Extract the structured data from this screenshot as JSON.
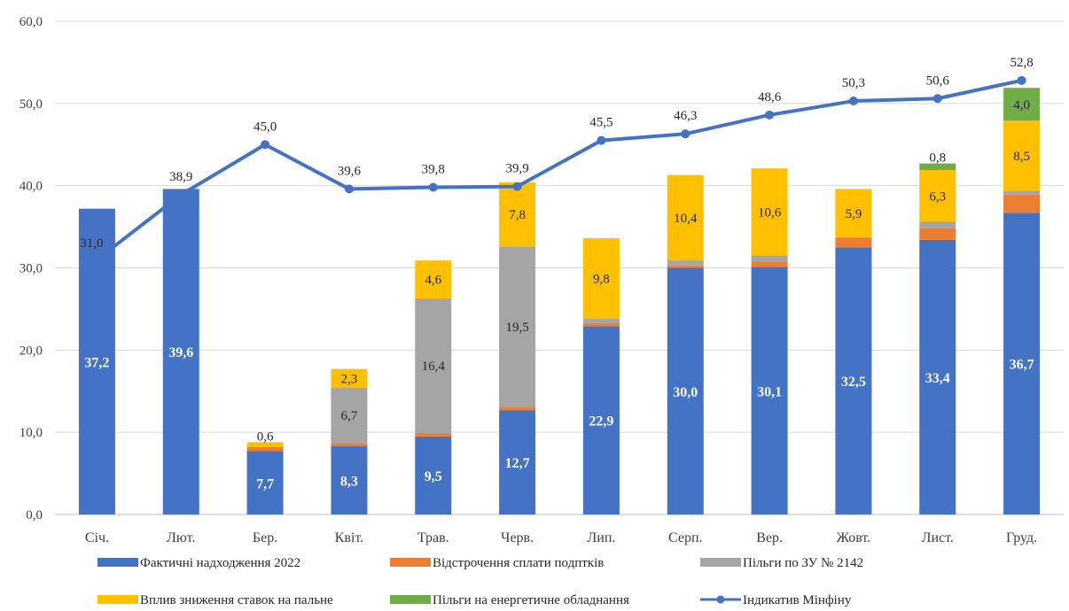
{
  "chart_data": {
    "type": "bar",
    "categories": [
      "Січ.",
      "Лют.",
      "Бер.",
      "Квіт.",
      "Трав.",
      "Черв.",
      "Лип.",
      "Серп.",
      "Вер.",
      "Жовт.",
      "Лист.",
      "Груд."
    ],
    "series": [
      {
        "name": "Фактичні надходження  2022",
        "kind": "stacked-bar",
        "color": "#4472C4",
        "values": [
          37.2,
          39.6,
          7.7,
          8.3,
          9.5,
          12.7,
          22.9,
          30.0,
          30.1,
          32.5,
          33.4,
          36.7
        ],
        "labels": [
          "37,2",
          "39,6",
          "7,7",
          "8,3",
          "9,5",
          "12,7",
          "22,9",
          "30,0",
          "30,1",
          "32,5",
          "33,4",
          "36,7"
        ]
      },
      {
        "name": "Відстрочення сплати подптків",
        "kind": "stacked-bar",
        "color": "#ED7D31",
        "values": [
          0,
          0,
          0.5,
          0.4,
          0.4,
          0.4,
          0.4,
          0.3,
          0.6,
          1.2,
          1.4,
          2.2
        ],
        "labels": [
          "",
          "",
          "",
          "",
          "",
          "",
          "",
          "",
          "",
          "",
          "",
          ""
        ]
      },
      {
        "name": "Пільги по ЗУ № 2142",
        "kind": "stacked-bar",
        "color": "#A5A5A5",
        "values": [
          0,
          0,
          0,
          6.7,
          16.4,
          19.5,
          0.5,
          0.6,
          0.8,
          0,
          0.8,
          0.5
        ],
        "labels": [
          "",
          "",
          "",
          "6,7",
          "16,4",
          "19,5",
          "",
          "",
          "",
          "",
          "",
          ""
        ]
      },
      {
        "name": "Вплив зниження ставок на пальне",
        "kind": "stacked-bar",
        "color": "#FFC000",
        "values": [
          0,
          0,
          0.6,
          2.3,
          4.6,
          7.8,
          9.8,
          10.4,
          10.6,
          5.9,
          6.3,
          8.5
        ],
        "labels": [
          "",
          "",
          "0,6",
          "2,3",
          "4,6",
          "7,8",
          "9,8",
          "10,4",
          "10,6",
          "5,9",
          "6,3",
          "8,5"
        ]
      },
      {
        "name": "Пільги на енергетичне обладнання",
        "kind": "stacked-bar",
        "color": "#70AD47",
        "values": [
          0,
          0,
          0,
          0,
          0,
          0,
          0,
          0,
          0,
          0,
          0.8,
          4.0
        ],
        "labels": [
          "",
          "",
          "",
          "",
          "",
          "",
          "",
          "",
          "",
          "",
          "0,8",
          "4,0"
        ]
      },
      {
        "name": "Індикатив Мінфіну",
        "kind": "line",
        "color": "#4472C4",
        "values": [
          31.0,
          38.9,
          45.0,
          39.6,
          39.8,
          39.9,
          45.5,
          46.3,
          48.6,
          50.3,
          50.6,
          52.8
        ],
        "labels": [
          "31,0",
          "38,9",
          "45,0",
          "39,6",
          "39,8",
          "39,9",
          "45,5",
          "46,3",
          "48,6",
          "50,3",
          "50,6",
          "52,8"
        ]
      }
    ],
    "y_ticks": [
      "0,0",
      "10,0",
      "20,0",
      "30,0",
      "40,0",
      "50,0",
      "60,0"
    ],
    "ylim": [
      0,
      60
    ],
    "grid": true,
    "legend_position": "bottom"
  }
}
